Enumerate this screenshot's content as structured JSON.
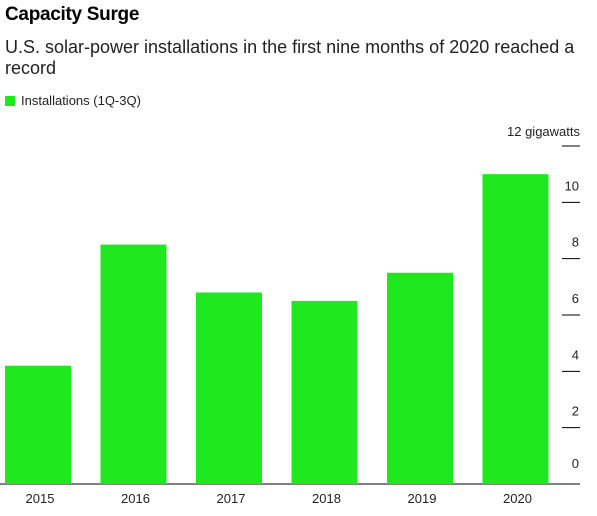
{
  "title": "Capacity Surge",
  "subtitle": "U.S. solar-power installations in the first nine months of 2020 reached a record",
  "legend": {
    "label": "Installations (1Q-3Q)",
    "color": "#1fe81f"
  },
  "y_unit_label": "12 gigawatts",
  "chart_data": {
    "type": "bar",
    "categories": [
      "2015",
      "2016",
      "2017",
      "2018",
      "2019",
      "2020"
    ],
    "series": [
      {
        "name": "Installations (1Q-3Q)",
        "values": [
          4.2,
          8.5,
          6.8,
          6.5,
          7.5,
          11.0
        ]
      }
    ],
    "ylim": [
      0,
      12
    ],
    "yticks": [
      0,
      2,
      4,
      6,
      8,
      10,
      12
    ],
    "ytick_labels": [
      "0",
      "2",
      "4",
      "6",
      "8",
      "10",
      "12 gigawatts"
    ],
    "ylabel": "",
    "xlabel": "",
    "grid": false,
    "legend_position": "top-left",
    "bar_color": "#1fe81f"
  }
}
